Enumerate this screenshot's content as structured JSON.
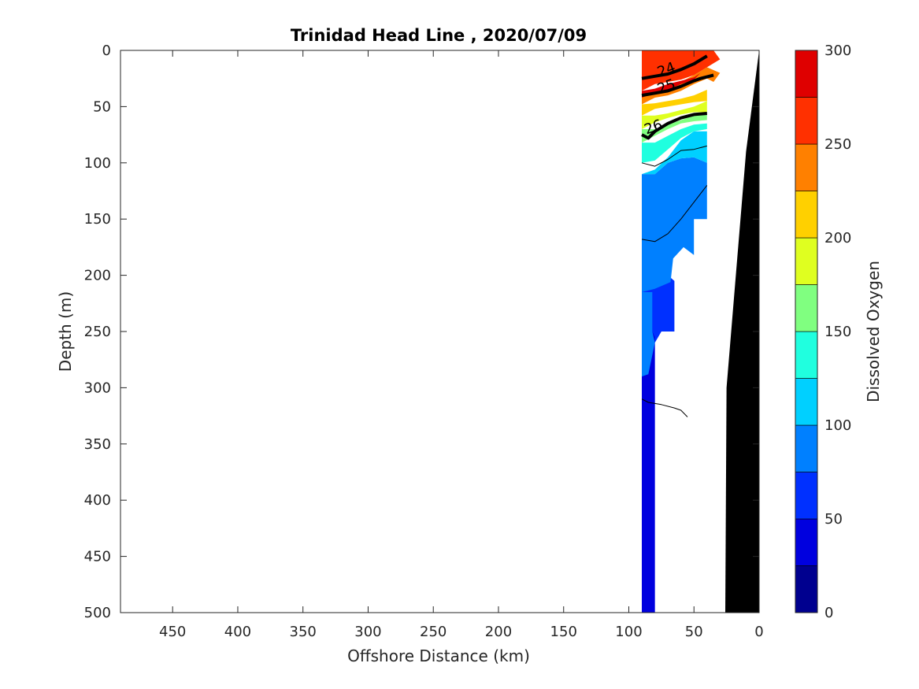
{
  "chart_data": {
    "type": "heatmap",
    "title": "Trinidad Head Line , 2020/07/09",
    "xlabel": "Offshore Distance (km)",
    "ylabel": "Depth (m)",
    "colorbar_label": "Dissolved Oxygen",
    "x_axis": {
      "range": [
        490,
        0
      ],
      "reversed": true,
      "ticks": [
        450,
        400,
        350,
        300,
        250,
        200,
        150,
        100,
        50,
        0
      ]
    },
    "y_axis": {
      "range": [
        0,
        500
      ],
      "reversed": true,
      "ticks": [
        0,
        50,
        100,
        150,
        200,
        250,
        300,
        350,
        400,
        450,
        500
      ]
    },
    "colorbar": {
      "range": [
        0,
        300
      ],
      "ticks": [
        0,
        50,
        100,
        150,
        200,
        250,
        300
      ],
      "levels": [
        0,
        25,
        50,
        75,
        100,
        125,
        150,
        175,
        200,
        225,
        250,
        275,
        300
      ],
      "colors": [
        "#00008f",
        "#0000df",
        "#0030ff",
        "#0080ff",
        "#00d0ff",
        "#20ffdf",
        "#80ff80",
        "#dfff20",
        "#ffd000",
        "#ff8000",
        "#ff3000",
        "#df0000"
      ]
    },
    "grid": false,
    "filled_regions": [
      {
        "value_range": [
          50,
          75
        ],
        "poly": [
          [
            90,
            500
          ],
          [
            80,
            500
          ],
          [
            80,
            260
          ],
          [
            75,
            250
          ],
          [
            65,
            250
          ],
          [
            65,
            205
          ],
          [
            70,
            200
          ],
          [
            90,
            200
          ]
        ]
      },
      {
        "value_range": [
          25,
          50
        ],
        "poly": [
          [
            90,
            500
          ],
          [
            80,
            500
          ],
          [
            80,
            255
          ],
          [
            82,
            250
          ],
          [
            90,
            250
          ]
        ]
      },
      {
        "value_range": [
          75,
          100
        ],
        "poly": [
          [
            90,
            215
          ],
          [
            80,
            212
          ],
          [
            68,
            206
          ],
          [
            66,
            185
          ],
          [
            58,
            175
          ],
          [
            50,
            182
          ],
          [
            50,
            150
          ],
          [
            40,
            150
          ],
          [
            40,
            100
          ],
          [
            50,
            95
          ],
          [
            60,
            96
          ],
          [
            70,
            100
          ],
          [
            80,
            110
          ],
          [
            90,
            110
          ]
        ]
      },
      {
        "value_range": [
          75,
          100
        ],
        "poly": [
          [
            90,
            215
          ],
          [
            90,
            290
          ],
          [
            85,
            288
          ],
          [
            80,
            260
          ],
          [
            82,
            250
          ],
          [
            82,
            215
          ]
        ]
      },
      {
        "value_range": [
          100,
          125
        ],
        "poly": [
          [
            90,
            110
          ],
          [
            80,
            106
          ],
          [
            70,
            95
          ],
          [
            60,
            80
          ],
          [
            50,
            72
          ],
          [
            40,
            72
          ],
          [
            40,
            100
          ],
          [
            50,
            95
          ],
          [
            60,
            96
          ],
          [
            70,
            100
          ],
          [
            80,
            110
          ]
        ]
      },
      {
        "value_range": [
          125,
          150
        ],
        "poly": [
          [
            90,
            100
          ],
          [
            80,
            98
          ],
          [
            70,
            88
          ],
          [
            60,
            78
          ],
          [
            50,
            72
          ],
          [
            40,
            70
          ],
          [
            40,
            65
          ],
          [
            50,
            66
          ],
          [
            60,
            70
          ],
          [
            70,
            76
          ],
          [
            80,
            82
          ],
          [
            90,
            82
          ]
        ]
      },
      {
        "value_range": [
          150,
          175
        ],
        "poly": [
          [
            90,
            82
          ],
          [
            80,
            76
          ],
          [
            70,
            70
          ],
          [
            60,
            65
          ],
          [
            50,
            63
          ],
          [
            40,
            62
          ],
          [
            40,
            55
          ],
          [
            50,
            58
          ],
          [
            60,
            62
          ],
          [
            70,
            66
          ],
          [
            80,
            70
          ],
          [
            90,
            70
          ]
        ]
      },
      {
        "value_range": [
          175,
          200
        ],
        "poly": [
          [
            90,
            70
          ],
          [
            80,
            64
          ],
          [
            70,
            60
          ],
          [
            60,
            57
          ],
          [
            50,
            55
          ],
          [
            40,
            55
          ],
          [
            40,
            45
          ],
          [
            50,
            50
          ],
          [
            60,
            53
          ],
          [
            70,
            56
          ],
          [
            80,
            58
          ],
          [
            90,
            58
          ]
        ]
      },
      {
        "value_range": [
          200,
          225
        ],
        "poly": [
          [
            90,
            58
          ],
          [
            80,
            52
          ],
          [
            70,
            50
          ],
          [
            60,
            48
          ],
          [
            50,
            46
          ],
          [
            40,
            45
          ],
          [
            40,
            35
          ],
          [
            50,
            40
          ],
          [
            60,
            43
          ],
          [
            70,
            45
          ],
          [
            80,
            47
          ],
          [
            90,
            48
          ]
        ]
      },
      {
        "value_range": [
          225,
          250
        ],
        "poly": [
          [
            90,
            48
          ],
          [
            80,
            42
          ],
          [
            70,
            40
          ],
          [
            60,
            36
          ],
          [
            50,
            30
          ],
          [
            40,
            25
          ],
          [
            35,
            28
          ],
          [
            30,
            20
          ],
          [
            40,
            15
          ],
          [
            50,
            22
          ],
          [
            60,
            28
          ],
          [
            70,
            32
          ],
          [
            80,
            35
          ],
          [
            90,
            36
          ]
        ]
      },
      {
        "value_range": [
          250,
          275
        ],
        "poly": [
          [
            90,
            36
          ],
          [
            80,
            30
          ],
          [
            70,
            28
          ],
          [
            60,
            26
          ],
          [
            50,
            22
          ],
          [
            40,
            15
          ],
          [
            30,
            8
          ],
          [
            35,
            0
          ],
          [
            90,
            0
          ]
        ]
      },
      {
        "value_range": [
          275,
          300
        ],
        "poly": [
          [
            90,
            42
          ],
          [
            80,
            38
          ],
          [
            70,
            35
          ],
          [
            60,
            30
          ],
          [
            50,
            26
          ],
          [
            45,
            20
          ],
          [
            50,
            24
          ],
          [
            60,
            27
          ],
          [
            70,
            30
          ],
          [
            80,
            34
          ],
          [
            90,
            36
          ]
        ]
      }
    ],
    "bottom": [
      [
        0,
        0
      ],
      [
        10,
        90
      ],
      [
        25,
        300
      ],
      [
        26,
        500
      ],
      [
        0,
        500
      ]
    ],
    "contour_lines": [
      {
        "label": "24",
        "bold": true,
        "points": [
          [
            90,
            25
          ],
          [
            80,
            23
          ],
          [
            70,
            21
          ],
          [
            60,
            17
          ],
          [
            50,
            12
          ],
          [
            40,
            5
          ]
        ]
      },
      {
        "label": "25",
        "bold": true,
        "points": [
          [
            90,
            40
          ],
          [
            80,
            38
          ],
          [
            70,
            36
          ],
          [
            60,
            32
          ],
          [
            50,
            27
          ],
          [
            45,
            25
          ],
          [
            35,
            22
          ]
        ]
      },
      {
        "label": "26",
        "bold": true,
        "points": [
          [
            90,
            75
          ],
          [
            85,
            78
          ],
          [
            80,
            72
          ],
          [
            70,
            65
          ],
          [
            60,
            60
          ],
          [
            50,
            57
          ],
          [
            40,
            56
          ]
        ]
      },
      {
        "label": "",
        "bold": false,
        "points": [
          [
            90,
            100
          ],
          [
            80,
            103
          ],
          [
            70,
            97
          ],
          [
            60,
            89
          ],
          [
            50,
            88
          ],
          [
            40,
            85
          ]
        ]
      },
      {
        "label": "",
        "bold": false,
        "points": [
          [
            90,
            168
          ],
          [
            80,
            170
          ],
          [
            70,
            163
          ],
          [
            60,
            150
          ],
          [
            50,
            135
          ],
          [
            40,
            120
          ]
        ]
      },
      {
        "label": "",
        "bold": false,
        "points": [
          [
            90,
            310
          ],
          [
            85,
            313
          ],
          [
            75,
            315
          ],
          [
            65,
            318
          ],
          [
            60,
            320
          ],
          [
            55,
            326
          ]
        ]
      }
    ]
  }
}
